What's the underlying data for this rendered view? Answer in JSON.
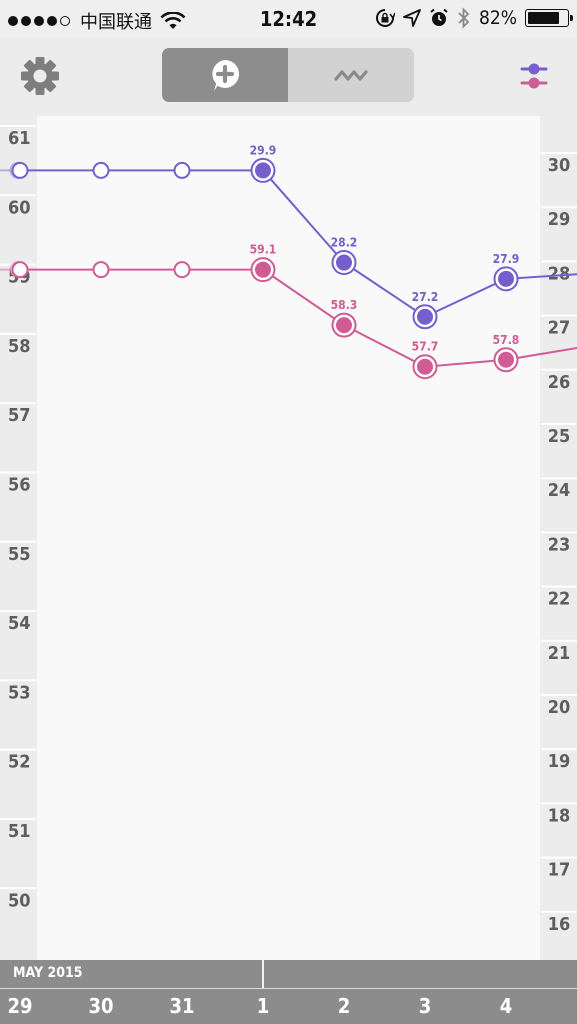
{
  "status_bar": {
    "carrier": "中国联通",
    "time": "12:42",
    "battery": "82%",
    "battery_level": 0.82
  },
  "nav": {
    "icons": {
      "settings": "gear-icon",
      "add": "add-entry-icon",
      "chart": "chart-wave-icon",
      "legend": "legend-icon"
    },
    "active_segment": "add"
  },
  "colors": {
    "series_a": "#7460cc",
    "series_b": "#d05c96",
    "background": "#f9f9f9",
    "gutter": "#ececec"
  },
  "chart_data": {
    "type": "line",
    "x": [
      "29",
      "30",
      "31",
      "1",
      "2",
      "3",
      "4"
    ],
    "left_axis": {
      "ticks": [
        61,
        60,
        59,
        58,
        57,
        56,
        55,
        54,
        53,
        52,
        51,
        50
      ]
    },
    "right_axis": {
      "ticks": [
        30,
        29,
        28,
        27,
        26,
        25,
        24,
        23,
        22,
        21,
        20,
        19,
        18,
        17,
        16
      ]
    },
    "series": [
      {
        "color": "#7460cc",
        "axis": "right",
        "values": [
          29.9,
          29.9,
          29.9,
          29.9,
          28.2,
          27.2,
          27.9
        ],
        "labels": [
          "",
          "",
          "",
          "29.9",
          "28.2",
          "27.2",
          "27.9"
        ],
        "recorded": [
          false,
          false,
          false,
          true,
          true,
          true,
          true
        ],
        "prev_value": 29.9,
        "next_value": 28.0
      },
      {
        "color": "#d05c96",
        "axis": "left",
        "values": [
          59.1,
          59.1,
          59.1,
          59.1,
          58.3,
          57.7,
          57.8
        ],
        "labels": [
          "",
          "",
          "",
          "59.1",
          "58.3",
          "57.7",
          "57.8"
        ],
        "recorded": [
          false,
          false,
          false,
          true,
          true,
          true,
          true
        ],
        "prev_value": 59.1,
        "next_value": 58.0
      }
    ]
  },
  "date_bar": {
    "month": "MAY 2015",
    "days": [
      "29",
      "30",
      "31",
      "1",
      "2",
      "3",
      "4"
    ]
  }
}
